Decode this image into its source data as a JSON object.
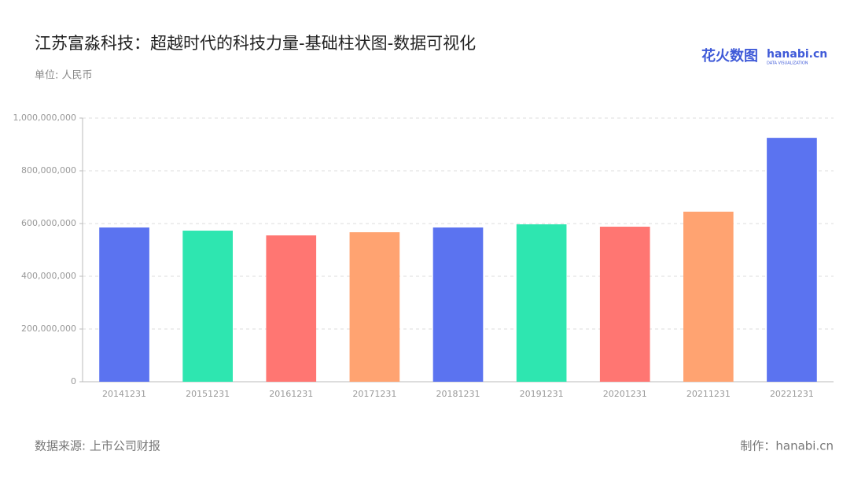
{
  "chart_data": {
    "type": "bar",
    "title": "江苏富淼科技：超越时代的科技力量-基础柱状图-数据可视化",
    "subtitle": "单位: 人民币",
    "source": "数据来源: 上市公司财报",
    "credit": "制作：hanabi.cn",
    "logo": {
      "name": "花火数图",
      "site": "hanabi.cn",
      "tagline": "DATA VISUALIZATION"
    },
    "categories": [
      "20141231",
      "20151231",
      "20161231",
      "20171231",
      "20181231",
      "20191231",
      "20201231",
      "20211231",
      "20221231"
    ],
    "values": [
      585000000,
      573000000,
      555000000,
      567000000,
      585000000,
      597000000,
      588000000,
      645000000,
      925000000
    ],
    "colors": [
      "#5b73f0",
      "#2ee6b0",
      "#ff7672",
      "#ffa371",
      "#5b73f0",
      "#2ee6b0",
      "#ff7672",
      "#ffa371",
      "#5b73f0"
    ],
    "ylim": [
      0,
      1000000000
    ],
    "yticks": [
      0,
      {
        "value": 200000000,
        "label": "200,000,000"
      },
      {
        "value": 400000000,
        "label": "400,000,000"
      },
      {
        "value": 600000000,
        "label": "600,000,000"
      },
      {
        "value": 800000000,
        "label": "800,000,000"
      },
      {
        "value": 1000000000,
        "label": "1,000,000,000"
      }
    ],
    "grid": true
  }
}
